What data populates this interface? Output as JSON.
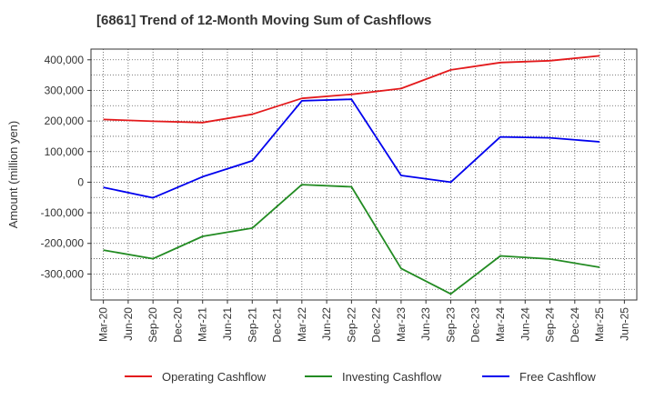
{
  "chart_data": {
    "type": "line",
    "title": "[6861]  Trend of 12-Month Moving Sum of Cashflows",
    "xlabel": "",
    "ylabel": "Amount (million yen)",
    "x": [
      "Mar-20",
      "Jun-20",
      "Sep-20",
      "Dec-20",
      "Mar-21",
      "Jun-21",
      "Sep-21",
      "Dec-21",
      "Mar-22",
      "Jun-22",
      "Sep-22",
      "Dec-22",
      "Mar-23",
      "Jun-23",
      "Sep-23",
      "Dec-23",
      "Mar-24",
      "Jun-24",
      "Sep-24",
      "Dec-24",
      "Mar-25",
      "Jun-25"
    ],
    "ylim": [
      -385000,
      435000
    ],
    "yticks": [
      400000,
      300000,
      200000,
      100000,
      0,
      -100000,
      -200000,
      -300000
    ],
    "ytick_labels": [
      "400,000",
      "300,000",
      "200,000",
      "100,000",
      "0",
      "-100,000",
      "-200,000",
      "-300,000"
    ],
    "grid": true,
    "legend_position": "bottom",
    "series": [
      {
        "name": "Operating Cashflow",
        "color": "#e31a1c",
        "points": [
          [
            "Mar-20",
            205000
          ],
          [
            "Sep-20",
            199000
          ],
          [
            "Mar-21",
            195000
          ],
          [
            "Sep-21",
            222000
          ],
          [
            "Mar-22",
            274000
          ],
          [
            "Sep-22",
            287000
          ],
          [
            "Mar-23",
            306000
          ],
          [
            "Sep-23",
            367000
          ],
          [
            "Mar-24",
            391000
          ],
          [
            "Sep-24",
            397000
          ],
          [
            "Mar-25",
            413000
          ]
        ]
      },
      {
        "name": "Investing Cashflow",
        "color": "#228b22",
        "points": [
          [
            "Mar-20",
            -222000
          ],
          [
            "Sep-20",
            -250000
          ],
          [
            "Mar-21",
            -177000
          ],
          [
            "Sep-21",
            -150000
          ],
          [
            "Mar-22",
            -8000
          ],
          [
            "Sep-22",
            -15000
          ],
          [
            "Mar-23",
            -282000
          ],
          [
            "Sep-23",
            -365000
          ],
          [
            "Mar-24",
            -241000
          ],
          [
            "Sep-24",
            -251000
          ],
          [
            "Mar-25",
            -278000
          ]
        ]
      },
      {
        "name": "Free Cashflow",
        "color": "#0000ee",
        "points": [
          [
            "Mar-20",
            -17000
          ],
          [
            "Sep-20",
            -51000
          ],
          [
            "Mar-21",
            18000
          ],
          [
            "Sep-21",
            70000
          ],
          [
            "Mar-22",
            266000
          ],
          [
            "Sep-22",
            271000
          ],
          [
            "Mar-23",
            22000
          ],
          [
            "Sep-23",
            0
          ],
          [
            "Mar-24",
            148000
          ],
          [
            "Sep-24",
            145000
          ],
          [
            "Mar-25",
            132000
          ]
        ]
      }
    ]
  }
}
